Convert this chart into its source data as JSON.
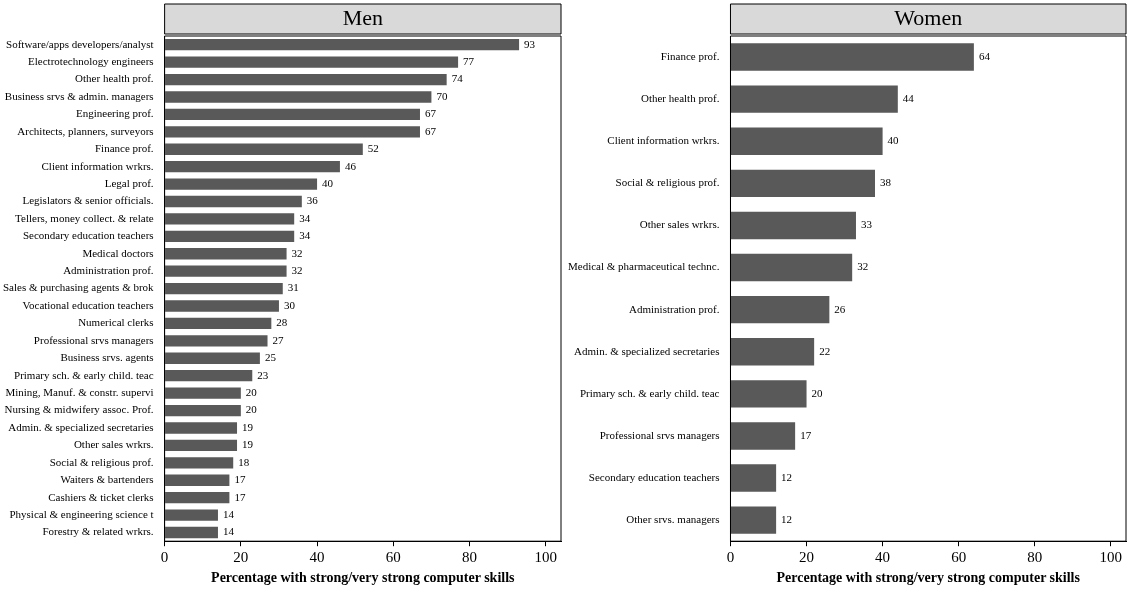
{
  "chart_data": [
    {
      "type": "bar",
      "orientation": "horizontal",
      "title": "Men",
      "xlabel": "Percentage with strong/very strong computer skills",
      "categories": [
        "Software/apps developers/analyst",
        "Electrotechnology engineers",
        "Other health prof.",
        "Business srvs & admin. managers",
        "Engineering prof.",
        "Architects, planners, surveyors",
        "Finance prof.",
        "Client information wrkrs.",
        "Legal prof.",
        "Legislators & senior officials.",
        "Tellers, money collect. & relate",
        "Secondary education teachers",
        "Medical doctors",
        "Administration prof.",
        "Sales & purchasing agents & brok",
        "Vocational education teachers",
        "Numerical clerks",
        "Professional srvs managers",
        "Business srvs. agents",
        "Primary sch. & early child. teac",
        "Mining, Manuf. & constr. supervi",
        "Nursing & midwifery assoc. Prof.",
        "Admin. & specialized secretaries",
        "Other sales wrkrs.",
        "Social & religious prof.",
        "Waiters & bartenders",
        "Cashiers & ticket clerks",
        "Physical & engineering science t",
        "Forestry & related wrkrs."
      ],
      "values": [
        93,
        77,
        74,
        70,
        67,
        67,
        52,
        46,
        40,
        36,
        34,
        34,
        32,
        32,
        31,
        30,
        28,
        27,
        25,
        23,
        20,
        20,
        19,
        19,
        18,
        17,
        17,
        14,
        14
      ],
      "color": "#595959",
      "xlim": [
        0,
        104
      ],
      "xticks": [
        0,
        20,
        40,
        60,
        80,
        100
      ],
      "data_labels": true
    },
    {
      "type": "bar",
      "orientation": "horizontal",
      "title": "Women",
      "xlabel": "Percentage with strong/very strong computer skills",
      "categories": [
        "Finance prof.",
        "Other health prof.",
        "Client information wrkrs.",
        "Social & religious prof.",
        "Other sales wrkrs.",
        "Medical & pharmaceutical technc.",
        "Administration prof.",
        "Admin. & specialized secretaries",
        "Primary sch. & early child. teac",
        "Professional srvs managers",
        "Secondary education teachers",
        "Other srvs. managers"
      ],
      "values": [
        64,
        44,
        40,
        38,
        33,
        32,
        26,
        22,
        20,
        17,
        12,
        12
      ],
      "color": "#595959",
      "xlim": [
        0,
        104
      ],
      "xticks": [
        0,
        20,
        40,
        60,
        80,
        100
      ],
      "data_labels": true
    }
  ]
}
